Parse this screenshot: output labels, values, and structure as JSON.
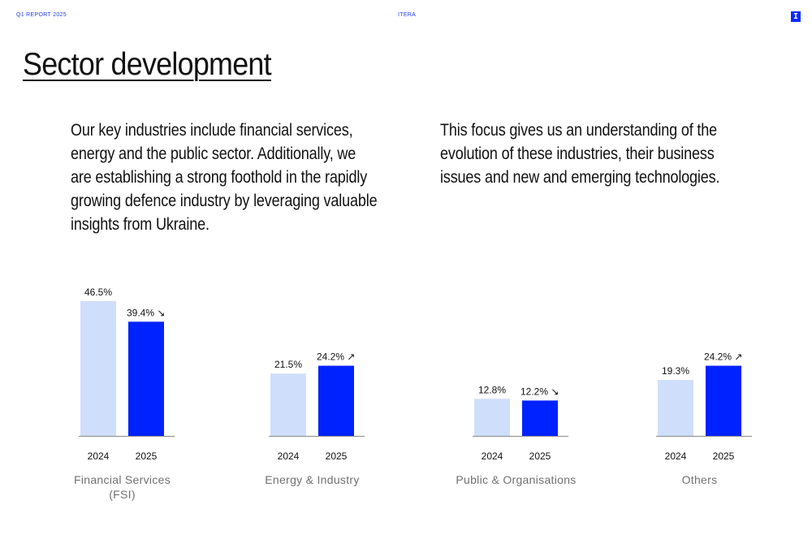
{
  "header": {
    "report": "Q1 REPORT 2025",
    "company": "ITERA",
    "logo_letter": "I"
  },
  "page": {
    "title": "Sector development",
    "paragraph_left": "Our key industries include financial services, energy and the public sector. Additionally, we are establishing a strong foothold in the rapidly growing defence industry by leveraging valuable insights from Ukraine.",
    "paragraph_right": "This focus gives us an understanding of the evolution of these industries, their business issues and new and emerging technologies."
  },
  "colors": {
    "accent": "#0a2bff",
    "bar_2024": "#cfdefa",
    "bar_2025": "#0022ff",
    "category_label": "#707070"
  },
  "chart_data": [
    {
      "type": "bar",
      "title": "Financial Services (FSI)",
      "title_lines": [
        "Financial Services",
        "(FSI)"
      ],
      "categories": [
        "2024",
        "2025"
      ],
      "values": [
        46.5,
        39.4
      ],
      "labels": [
        "46.5%",
        "39.4%"
      ],
      "trend": "down",
      "unit": "%",
      "ylim": [
        0,
        50
      ],
      "grid": false,
      "legend": "none"
    },
    {
      "type": "bar",
      "title": "Energy & Industry",
      "title_lines": [
        "Energy & Industry"
      ],
      "categories": [
        "2024",
        "2025"
      ],
      "values": [
        21.5,
        24.2
      ],
      "labels": [
        "21.5%",
        "24.2%"
      ],
      "trend": "up",
      "unit": "%",
      "ylim": [
        0,
        50
      ],
      "grid": false,
      "legend": "none"
    },
    {
      "type": "bar",
      "title": "Public & Organisations",
      "title_lines": [
        "Public & Organisations"
      ],
      "categories": [
        "2024",
        "2025"
      ],
      "values": [
        12.8,
        12.2
      ],
      "labels": [
        "12.8%",
        "12.2%"
      ],
      "trend": "down",
      "unit": "%",
      "ylim": [
        0,
        50
      ],
      "grid": false,
      "legend": "none"
    },
    {
      "type": "bar",
      "title": "Others",
      "title_lines": [
        "Others"
      ],
      "categories": [
        "2024",
        "2025"
      ],
      "values": [
        19.3,
        24.2
      ],
      "labels": [
        "19.3%",
        "24.2%"
      ],
      "trend": "up",
      "unit": "%",
      "ylim": [
        0,
        50
      ],
      "grid": false,
      "legend": "none"
    }
  ]
}
